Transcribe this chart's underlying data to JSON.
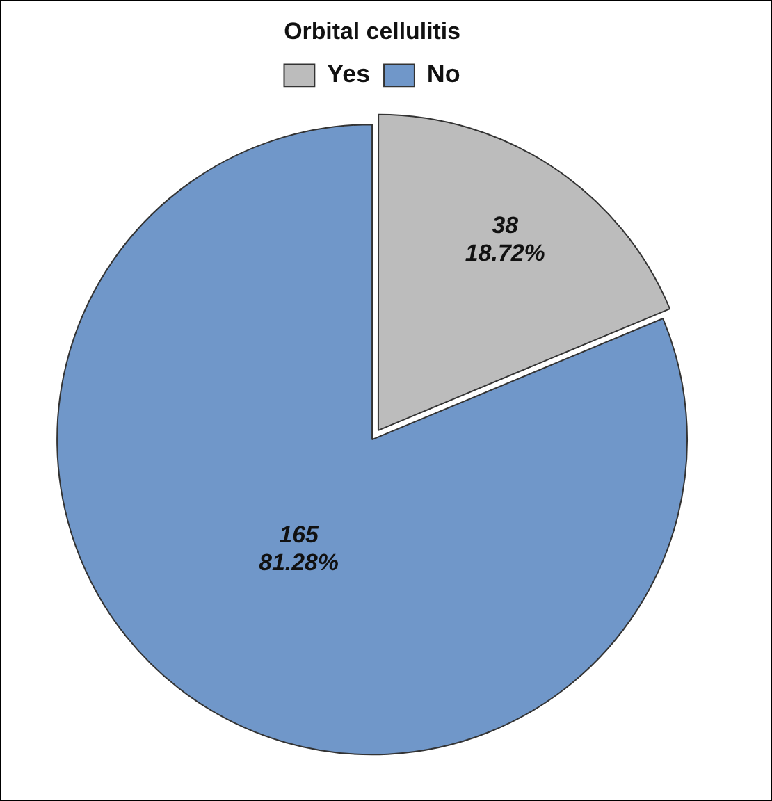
{
  "chart_data": {
    "type": "pie",
    "legend_title": "Orbital cellulitis",
    "legend": "top",
    "categories": [
      "Yes",
      "No"
    ],
    "values": [
      38,
      165
    ],
    "colors": [
      "#bcbcbc",
      "#7097c9"
    ],
    "value_labels": [
      "38\n18.72%",
      "165\n81.28%"
    ]
  }
}
